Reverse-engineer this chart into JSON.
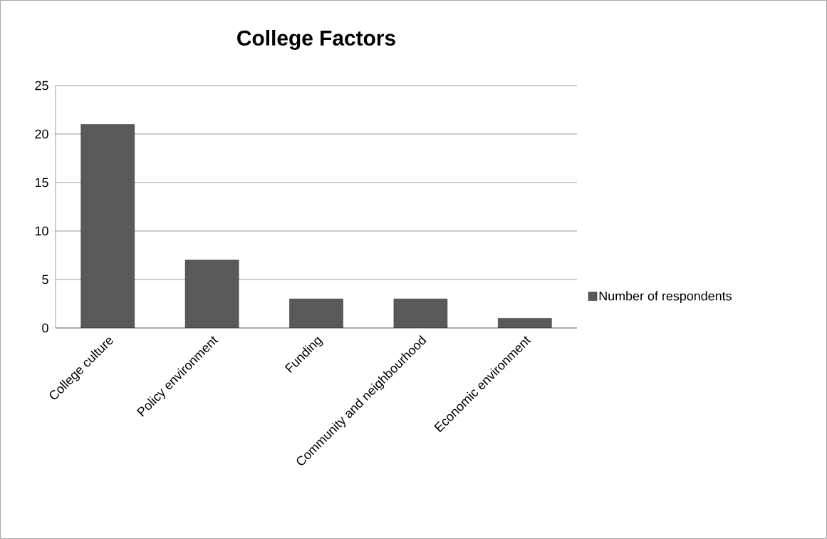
{
  "chart_data": {
    "type": "bar",
    "title": "College Factors",
    "categories": [
      "College culture",
      "Policy environment",
      "Funding",
      "Community and neighbourhood",
      "Economic environment"
    ],
    "series": [
      {
        "name": "Number of respondents",
        "color": "#595959",
        "values": [
          21,
          7,
          3,
          3,
          1
        ]
      }
    ],
    "ylim": [
      0,
      25
    ],
    "yticks": [
      0,
      5,
      10,
      15,
      20,
      25
    ],
    "grid": "y",
    "legend": "right"
  }
}
